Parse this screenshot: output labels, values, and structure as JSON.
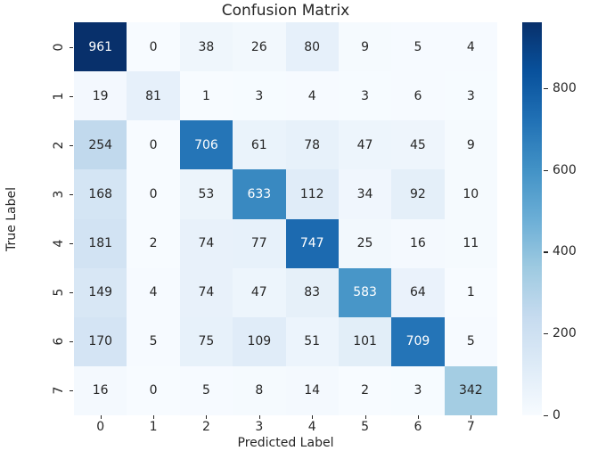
{
  "figure": {
    "title": "Confusion Matrix",
    "xlabel": "Predicted Label",
    "ylabel": "True Label",
    "background_color": "#ffffff",
    "text_color": "#262626"
  },
  "chart_data": {
    "type": "heatmap",
    "title": "Confusion Matrix",
    "xlabel": "Predicted Label",
    "ylabel": "True Label",
    "x_tick_labels": [
      "0",
      "1",
      "2",
      "3",
      "4",
      "5",
      "6",
      "7"
    ],
    "y_tick_labels": [
      "0",
      "1",
      "2",
      "3",
      "4",
      "5",
      "6",
      "7"
    ],
    "matrix": [
      [
        961,
        0,
        38,
        26,
        80,
        9,
        5,
        4
      ],
      [
        19,
        81,
        1,
        3,
        4,
        3,
        6,
        3
      ],
      [
        254,
        0,
        706,
        61,
        78,
        47,
        45,
        9
      ],
      [
        168,
        0,
        53,
        633,
        112,
        34,
        92,
        10
      ],
      [
        181,
        2,
        74,
        77,
        747,
        25,
        16,
        11
      ],
      [
        149,
        4,
        74,
        47,
        83,
        583,
        64,
        1
      ],
      [
        170,
        5,
        75,
        109,
        51,
        101,
        709,
        5
      ],
      [
        16,
        0,
        5,
        8,
        14,
        2,
        3,
        342
      ]
    ],
    "vmin": 0,
    "vmax": 961,
    "grid": false,
    "legend_position": "colorbar-right",
    "colormap": {
      "name": "Blues",
      "anchors": [
        "#f7fbff",
        "#deebf7",
        "#c6dbef",
        "#9ecae1",
        "#6baed6",
        "#4292c6",
        "#2171b5",
        "#08519c",
        "#08306b"
      ]
    },
    "colorbar_ticks": [
      0,
      200,
      400,
      600,
      800
    ],
    "annotation_colors": {
      "on_light": "#262626",
      "on_dark": "#ffffff"
    }
  }
}
